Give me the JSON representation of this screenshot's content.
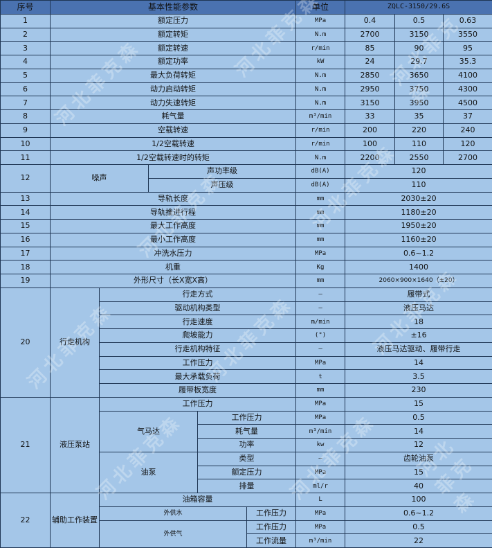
{
  "header": {
    "no": "序号",
    "param": "基本性能参数",
    "unit": "单位",
    "model": "ZQLC-3150/29.6S"
  },
  "rows": [
    {
      "no": "1",
      "name": "额定压力",
      "unit": "MPa",
      "v": [
        "0.4",
        "0.5",
        "0.63"
      ]
    },
    {
      "no": "2",
      "name": "额定转矩",
      "unit": "N.m",
      "v": [
        "2700",
        "3150",
        "3550"
      ]
    },
    {
      "no": "3",
      "name": "额定转速",
      "unit": "r/min",
      "v": [
        "85",
        "90",
        "95"
      ]
    },
    {
      "no": "4",
      "name": "额定功率",
      "unit": "kW",
      "v": [
        "24",
        "29.7",
        "35.3"
      ]
    },
    {
      "no": "5",
      "name": "最大负荷转矩",
      "unit": "N.m",
      "v": [
        "2850",
        "3650",
        "4100"
      ]
    },
    {
      "no": "6",
      "name": "动力启动转矩",
      "unit": "N.m",
      "v": [
        "2950",
        "3750",
        "4300"
      ]
    },
    {
      "no": "7",
      "name": "动力失速转矩",
      "unit": "N.m",
      "v": [
        "3150",
        "3950",
        "4500"
      ]
    },
    {
      "no": "8",
      "name": "耗气量",
      "unit": "m³/min",
      "v": [
        "33",
        "35",
        "37"
      ]
    },
    {
      "no": "9",
      "name": "空载转速",
      "unit": "r/min",
      "v": [
        "200",
        "220",
        "240"
      ]
    },
    {
      "no": "10",
      "name": "1/2空载转速",
      "unit": "r/min",
      "v": [
        "100",
        "110",
        "120"
      ]
    },
    {
      "no": "11",
      "name": "1/2空载转速时的转矩",
      "unit": "N.m",
      "v": [
        "2200",
        "2550",
        "2700"
      ]
    }
  ],
  "noise": {
    "no": "12",
    "name": "噪声",
    "items": [
      {
        "name": "声功率级",
        "unit": "dB(A)",
        "value": "120"
      },
      {
        "name": "声压级",
        "unit": "dB(A)",
        "value": "110"
      }
    ]
  },
  "rows2": [
    {
      "no": "13",
      "name": "导轨长度",
      "unit": "mm",
      "value": "2030±20"
    },
    {
      "no": "14",
      "name": "导轨推进行程",
      "unit": "mm",
      "value": "1180±20"
    },
    {
      "no": "15",
      "name": "最大工作高度",
      "unit": "mm",
      "value": "1950±20"
    },
    {
      "no": "16",
      "name": "最小工作高度",
      "unit": "mm",
      "value": "1160±20"
    },
    {
      "no": "17",
      "name": "冲洗水压力",
      "unit": "MPa",
      "value": "0.6~1.2"
    },
    {
      "no": "18",
      "name": "机重",
      "unit": "Kg",
      "value": "1400"
    },
    {
      "no": "19",
      "name": "外形尺寸（长X宽X高）",
      "unit": "mm",
      "value": "2060×900×1640（±20）"
    }
  ],
  "travel": {
    "no": "20",
    "name": "行走机构",
    "items": [
      {
        "name": "行走方式",
        "unit": "—",
        "value": "履带式"
      },
      {
        "name": "驱动机构类型",
        "unit": "—",
        "value": "液压马达"
      },
      {
        "name": "行走速度",
        "unit": "m/min",
        "value": "18"
      },
      {
        "name": "爬坡能力",
        "unit": "(°)",
        "value": "±16"
      },
      {
        "name": "行走机构特征",
        "unit": "—",
        "value": "液压马达驱动、履带行走"
      },
      {
        "name": "工作压力",
        "unit": "MPa",
        "value": "14"
      },
      {
        "name": "最大承载负荷",
        "unit": "t",
        "value": "3.5"
      },
      {
        "name": "履带板宽度",
        "unit": "mm",
        "value": "230"
      }
    ]
  },
  "pump": {
    "no": "21",
    "name": "液压泵站",
    "pressure": {
      "name": "工作压力",
      "unit": "MPa",
      "value": "15"
    },
    "air_motor": {
      "name": "气马达",
      "items": [
        {
          "name": "工作压力",
          "unit": "MPa",
          "value": "0.5"
        },
        {
          "name": "耗气量",
          "unit": "m³/min",
          "value": "14"
        },
        {
          "name": "功率",
          "unit": "kw",
          "value": "12"
        }
      ]
    },
    "oil_pump": {
      "name": "油泵",
      "items": [
        {
          "name": "类型",
          "unit": "—",
          "value": "齿轮油泵"
        },
        {
          "name": "额定压力",
          "unit": "MPa",
          "value": "15"
        },
        {
          "name": "排量",
          "unit": "ml/r",
          "value": "40"
        }
      ]
    }
  },
  "aux": {
    "no": "22",
    "name": "辅助工作装置",
    "tank": {
      "name": "油箱容量",
      "unit": "L",
      "value": "100"
    },
    "water": {
      "name": "外供水",
      "items": [
        {
          "name": "工作压力",
          "unit": "MPa",
          "value": "0.6~1.2"
        }
      ]
    },
    "air": {
      "name": "外供气",
      "items": [
        {
          "name": "工作压力",
          "unit": "MPa",
          "value": "0.5"
        },
        {
          "name": "工作流量",
          "unit": "m³/min",
          "value": "22"
        }
      ]
    }
  },
  "watermark": "河北菲克森",
  "colors": {
    "header_bg": "#4a72b0",
    "cell_bg": "#a4c6e8",
    "border": "#1e3553"
  }
}
